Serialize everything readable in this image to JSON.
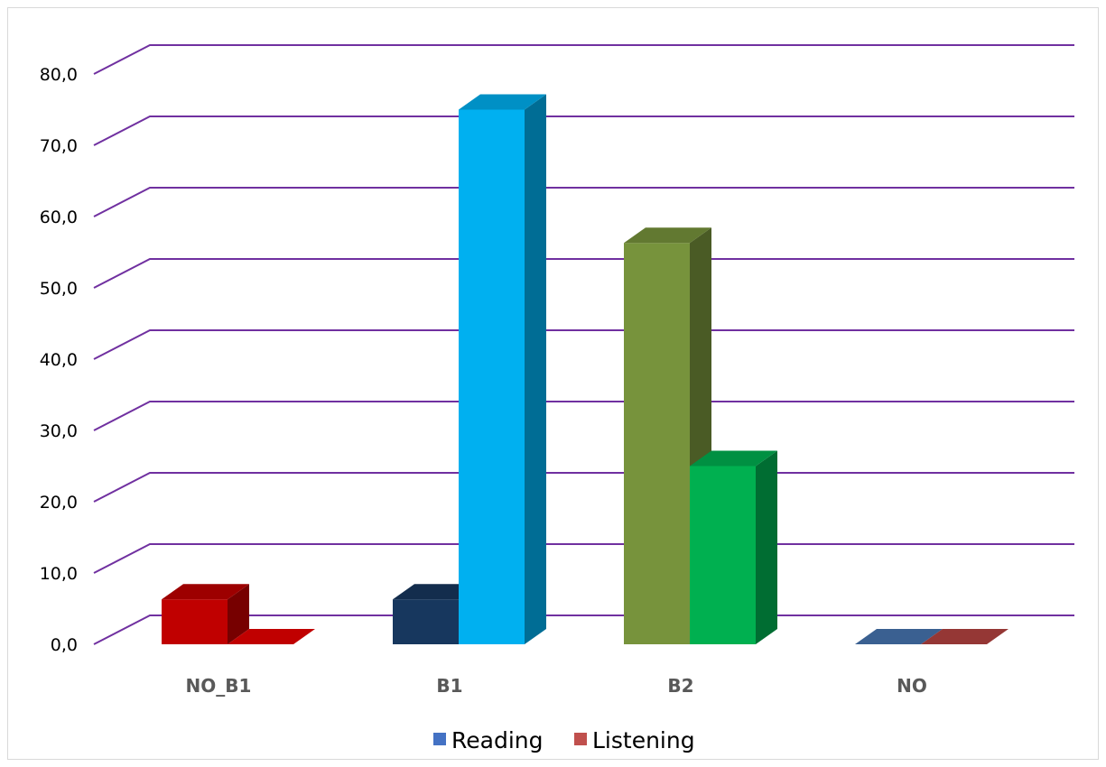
{
  "chart_data": {
    "type": "bar",
    "categories": [
      "NO_B1",
      "B1",
      "B2",
      "NO"
    ],
    "series": [
      {
        "name": "Reading",
        "legend_color": "#4472c4",
        "values": [
          6.3,
          6.3,
          56.3,
          0.0
        ],
        "colors": [
          "#c00000",
          "#17375e",
          "#77933c",
          "#3a6091"
        ]
      },
      {
        "name": "Listening",
        "legend_color": "#c0504d",
        "values": [
          0.0,
          75.0,
          25.0,
          0.0
        ],
        "colors": [
          "#c00000",
          "#00b0f0",
          "#00b050",
          "#953735"
        ]
      }
    ],
    "y_ticks": [
      "0,0",
      "10,0",
      "20,0",
      "30,0",
      "40,0",
      "50,0",
      "60,0",
      "70,0",
      "80,0"
    ],
    "ylim": [
      0,
      80
    ],
    "gridlines": true,
    "gridline_color": "#7030a0",
    "legend_position": "bottom"
  }
}
